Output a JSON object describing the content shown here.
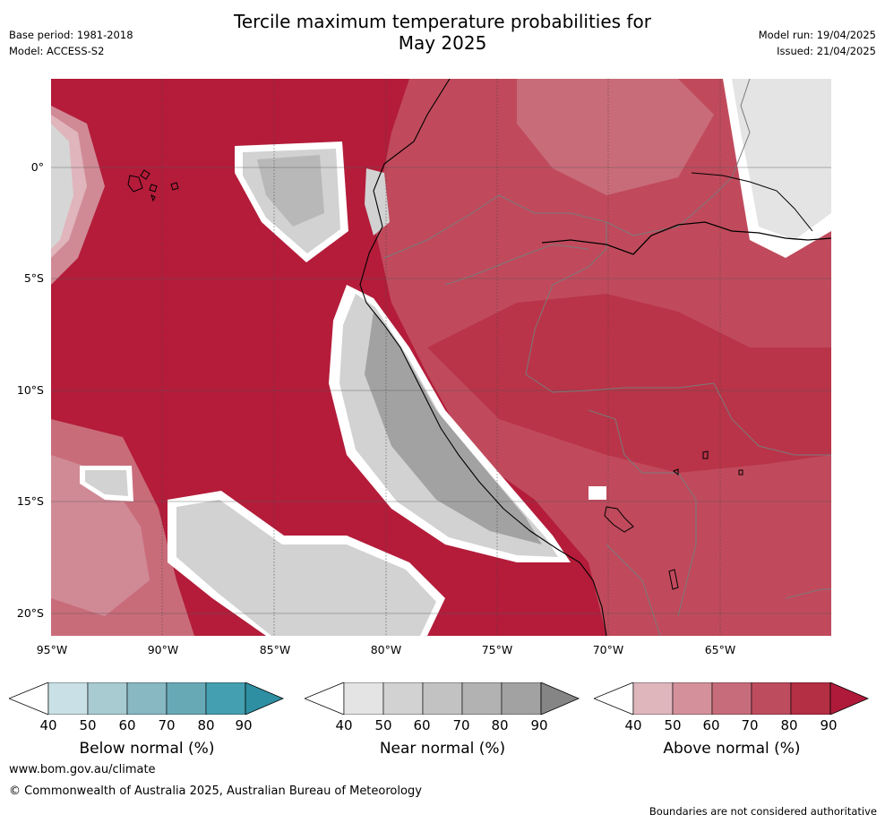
{
  "header": {
    "title_line1": "Tercile maximum temperature probabilities for",
    "title_line2": "May 2025",
    "base_period": "Base period: 1981-2018",
    "model": "Model: ACCESS-S2",
    "model_run": "Model run: 19/04/2025",
    "issued": "Issued: 21/04/2025"
  },
  "map": {
    "y_ticks": [
      "0°",
      "5°S",
      "10°S",
      "15°S",
      "20°S"
    ],
    "x_ticks": [
      "95°W",
      "90°W",
      "85°W",
      "80°W",
      "75°W",
      "70°W",
      "65°W"
    ],
    "ocean_color": "#b41c3a"
  },
  "colorbars": [
    {
      "name": "below",
      "title": "Below normal (%)",
      "ticks": [
        "40",
        "50",
        "60",
        "70",
        "80",
        "90"
      ],
      "colors": [
        "#ffffff",
        "#c9e1e6",
        "#a8cbd2",
        "#88b8c2",
        "#68a9b6",
        "#44a0b0",
        "#2e8fa2"
      ]
    },
    {
      "name": "near",
      "title": "Near normal (%)",
      "ticks": [
        "40",
        "50",
        "60",
        "70",
        "80",
        "90"
      ],
      "colors": [
        "#ffffff",
        "#e4e4e4",
        "#d2d2d2",
        "#c2c2c2",
        "#b2b2b2",
        "#a2a2a2",
        "#858585"
      ]
    },
    {
      "name": "above",
      "title": "Above normal (%)",
      "ticks": [
        "40",
        "50",
        "60",
        "70",
        "80",
        "90"
      ],
      "colors": [
        "#ffffff",
        "#e0b6bd",
        "#d4919c",
        "#c76c7b",
        "#bd4c5e",
        "#b42e44",
        "#b01a3a"
      ]
    }
  ],
  "footer": {
    "url": "www.bom.gov.au/climate",
    "copyright": "© Commonwealth of Australia 2025, Australian Bureau of Meteorology",
    "disclaimer": "Boundaries are not considered authoritative"
  }
}
